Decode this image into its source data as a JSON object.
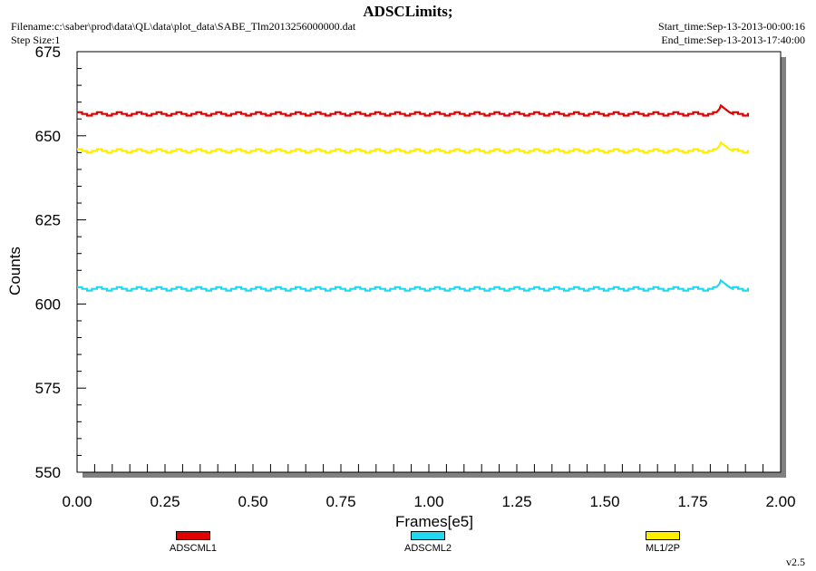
{
  "header": {
    "title": "ADSCLimits;",
    "filename": "Filename:c:\\saber\\prod\\data\\QL\\data\\plot_data\\SABE_Tlm2013256000000.dat",
    "step_size": "Step Size:1",
    "start_time": "Start_time:Sep-13-2013-00:00:16",
    "end_time": "End_time:Sep-13-2013-17:40:00"
  },
  "footer": {
    "version": "v2.5"
  },
  "chart_data": {
    "type": "line",
    "title": "ADSCLimits;",
    "xlabel": "Frames[e5]",
    "ylabel": "Counts",
    "xlim": [
      0.0,
      2.0
    ],
    "ylim": [
      550,
      675
    ],
    "x_ticks": [
      "0.00",
      "0.25",
      "0.50",
      "0.75",
      "1.00",
      "1.25",
      "1.50",
      "1.75",
      "2.00"
    ],
    "y_ticks": [
      "550",
      "575",
      "600",
      "625",
      "650",
      "675"
    ],
    "grid": false,
    "legend_position": "bottom",
    "series": [
      {
        "name": "ADSCML1",
        "color": "#e00000",
        "x_range": [
          0.0,
          1.91
        ],
        "base": 656.5,
        "step": 1,
        "period": 0.0565,
        "bump": {
          "x": 1.83,
          "value": 659
        }
      },
      {
        "name": "ADSCML2",
        "color": "#22d8ee",
        "x_range": [
          0.0,
          1.91
        ],
        "base": 604.5,
        "step": 1,
        "period": 0.0565,
        "bump": {
          "x": 1.83,
          "value": 607
        }
      },
      {
        "name": "ML1/2P",
        "color": "#ffee00",
        "x_range": [
          0.0,
          1.91
        ],
        "base": 645.5,
        "step": 1,
        "period": 0.0565,
        "bump": {
          "x": 1.83,
          "value": 648
        }
      }
    ]
  }
}
